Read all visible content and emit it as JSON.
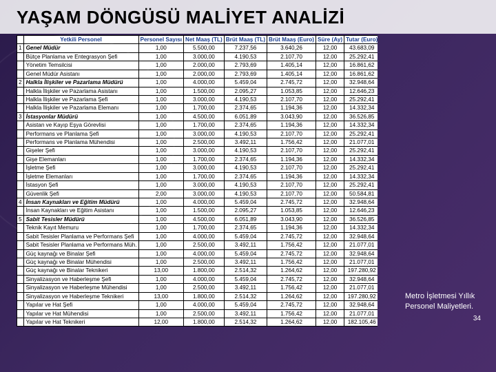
{
  "title": "YAŞAM DÖNGÜSÜ MALİYET ANALİZİ",
  "caption": "Metro İşletmesi Yıllık Personel Maliyetleri.",
  "page_number": "34",
  "table": {
    "headers": [
      "",
      "Yetkili Personel",
      "Personel Sayısı",
      "Net Maaş (TL)",
      "Brüt Maaş (TL)",
      "Brüt Maaş (Euro)",
      "Süre (Ay)",
      "Tutar (Euro)"
    ],
    "col_widths": [
      "14px",
      "auto",
      "38px",
      "44px",
      "44px",
      "44px",
      "30px",
      "48px"
    ],
    "rows": [
      {
        "idx": "1",
        "name": "Genel Müdür",
        "bold": true,
        "v": [
          "1,00",
          "5.500,00",
          "7.237,56",
          "3.640,26",
          "12,00",
          "43.683,09"
        ]
      },
      {
        "idx": "",
        "name": "Bütçe Planlama ve Entegrasyon Şefi",
        "v": [
          "1,00",
          "3.000,00",
          "4.190,53",
          "2.107,70",
          "12,00",
          "25.292,41"
        ]
      },
      {
        "idx": "",
        "name": "Yönetim Temsilcisi",
        "v": [
          "1,00",
          "2.000,00",
          "2.793,69",
          "1.405,14",
          "12,00",
          "16.861,62"
        ]
      },
      {
        "idx": "",
        "name": "Genel Müdür Asistanı",
        "v": [
          "1,00",
          "2.000,00",
          "2.793,69",
          "1.405,14",
          "12,00",
          "16.861,62"
        ]
      },
      {
        "idx": "2",
        "name": "Halkla İlişkiler ve Pazarlama Müdürü",
        "bold": true,
        "v": [
          "1,00",
          "4.000,00",
          "5.459,04",
          "2.745,72",
          "12,00",
          "32.948,64"
        ]
      },
      {
        "idx": "",
        "name": "Halkla İlişkiler ve Pazarlama Asistanı",
        "v": [
          "1,00",
          "1.500,00",
          "2.095,27",
          "1.053,85",
          "12,00",
          "12.646,23"
        ]
      },
      {
        "idx": "",
        "name": "Halkla İlişkiler ve Pazarlama Şefi",
        "v": [
          "1,00",
          "3.000,00",
          "4.190,53",
          "2.107,70",
          "12,00",
          "25.292,41"
        ]
      },
      {
        "idx": "",
        "name": "Halkla İlişkiler ve Pazarlama Elemanı",
        "v": [
          "1,00",
          "1.700,00",
          "2.374,65",
          "1.194,36",
          "12,00",
          "14.332,34"
        ]
      },
      {
        "idx": "3",
        "name": "İstasyonlar Müdürü",
        "bold": true,
        "v": [
          "1,00",
          "4.500,00",
          "6.051,89",
          "3.043,90",
          "12,00",
          "36.526,85"
        ]
      },
      {
        "idx": "",
        "name": "Asistan ve Kayıp Eşya Görevlisi",
        "v": [
          "1,00",
          "1.700,00",
          "2.374,65",
          "1.194,36",
          "12,00",
          "14.332,34"
        ]
      },
      {
        "idx": "",
        "name": "Performans ve Planlama Şefi",
        "v": [
          "1,00",
          "3.000,00",
          "4.190,53",
          "2.107,70",
          "12,00",
          "25.292,41"
        ]
      },
      {
        "idx": "",
        "name": "Performans ve Planlama Mühendisi",
        "v": [
          "1,00",
          "2.500,00",
          "3.492,11",
          "1.756,42",
          "12,00",
          "21.077,01"
        ]
      },
      {
        "idx": "",
        "name": "Gişeler Şefi",
        "v": [
          "1,00",
          "3.000,00",
          "4.190,53",
          "2.107,70",
          "12,00",
          "25.292,41"
        ]
      },
      {
        "idx": "",
        "name": "Gişe Elemanları",
        "v": [
          "1,00",
          "1.700,00",
          "2.374,65",
          "1.194,36",
          "12,00",
          "14.332,34"
        ]
      },
      {
        "idx": "",
        "name": "İşletme Şefi",
        "v": [
          "1,00",
          "3.000,00",
          "4.190,53",
          "2.107,70",
          "12,00",
          "25.292,41"
        ]
      },
      {
        "idx": "",
        "name": "İşletme Elemanları",
        "v": [
          "1,00",
          "1.700,00",
          "2.374,65",
          "1.194,36",
          "12,00",
          "14.332,34"
        ]
      },
      {
        "idx": "",
        "name": "İstasyon Şefi",
        "v": [
          "1,00",
          "3.000,00",
          "4.190,53",
          "2.107,70",
          "12,00",
          "25.292,41"
        ]
      },
      {
        "idx": "",
        "name": "Güvenlik Şefi",
        "v": [
          "2,00",
          "3.000,00",
          "4.190,53",
          "2.107,70",
          "12,00",
          "50.584,81"
        ]
      },
      {
        "idx": "4",
        "name": "İnsan Kaynakları ve Eğitim Müdürü",
        "bold": true,
        "v": [
          "1,00",
          "4.000,00",
          "5.459,04",
          "2.745,72",
          "12,00",
          "32.948,64"
        ]
      },
      {
        "idx": "",
        "name": "İnsan Kaynakları ve Eğitim Asistanı",
        "v": [
          "1,00",
          "1.500,00",
          "2.095,27",
          "1.053,85",
          "12,00",
          "12.646,23"
        ]
      },
      {
        "idx": "5",
        "name": "Sabit Tesisler Müdürü",
        "bold": true,
        "v": [
          "1,00",
          "4.500,00",
          "6.051,89",
          "3.043,90",
          "12,00",
          "36.526,85"
        ]
      },
      {
        "idx": "",
        "name": "Teknik Kayıt Memuru",
        "v": [
          "1,00",
          "1.700,00",
          "2.374,65",
          "1.194,36",
          "12,00",
          "14.332,34"
        ]
      },
      {
        "idx": "",
        "name": "Sabit Tesisler Planlama ve Performans Şefi",
        "v": [
          "1,00",
          "4.000,00",
          "5.459,04",
          "2.745,72",
          "12,00",
          "32.948,64"
        ]
      },
      {
        "idx": "",
        "name": "Sabit Tesisler Planlama ve Performans Müh.",
        "v": [
          "1,00",
          "2.500,00",
          "3.492,11",
          "1.756,42",
          "12,00",
          "21.077,01"
        ]
      },
      {
        "idx": "",
        "name": "Güç kaynağı ve Binalar Şefi",
        "v": [
          "1,00",
          "4.000,00",
          "5.459,04",
          "2.745,72",
          "12,00",
          "32.948,64"
        ]
      },
      {
        "idx": "",
        "name": "Güç kaynağı ve Binalar Mühendisi",
        "v": [
          "1,00",
          "2.500,00",
          "3.492,11",
          "1.756,42",
          "12,00",
          "21.077,01"
        ]
      },
      {
        "idx": "",
        "name": "Güç kaynağı ve Binalar Teknikeri",
        "v": [
          "13,00",
          "1.800,00",
          "2.514,32",
          "1.264,62",
          "12,00",
          "197.280,92"
        ]
      },
      {
        "idx": "",
        "name": "Sinyalizasyon ve Haberleşme Şefi",
        "v": [
          "1,00",
          "4.000,00",
          "5.459,04",
          "2.745,72",
          "12,00",
          "32.948,64"
        ]
      },
      {
        "idx": "",
        "name": "Sinyalizasyon ve Haberleşme Mühendisi",
        "v": [
          "1,00",
          "2.500,00",
          "3.492,11",
          "1.756,42",
          "12,00",
          "21.077,01"
        ]
      },
      {
        "idx": "",
        "name": "Sinyalizasyon ve Haberleşme Teknikeri",
        "v": [
          "13,00",
          "1.800,00",
          "2.514,32",
          "1.264,62",
          "12,00",
          "197.280,92"
        ]
      },
      {
        "idx": "",
        "name": "Yapılar ve Hat Şefi",
        "v": [
          "1,00",
          "4.000,00",
          "5.459,04",
          "2.745,72",
          "12,00",
          "32.948,64"
        ]
      },
      {
        "idx": "",
        "name": "Yapılar ve Hat Mühendisi",
        "v": [
          "1,00",
          "2.500,00",
          "3.492,11",
          "1.756,42",
          "12,00",
          "21.077,01"
        ]
      },
      {
        "idx": "",
        "name": "Yapılar ve Hat Teknikeri",
        "v": [
          "12,00",
          "1.800,00",
          "2.514,32",
          "1.264,62",
          "12,00",
          "182.105,46"
        ]
      }
    ]
  }
}
